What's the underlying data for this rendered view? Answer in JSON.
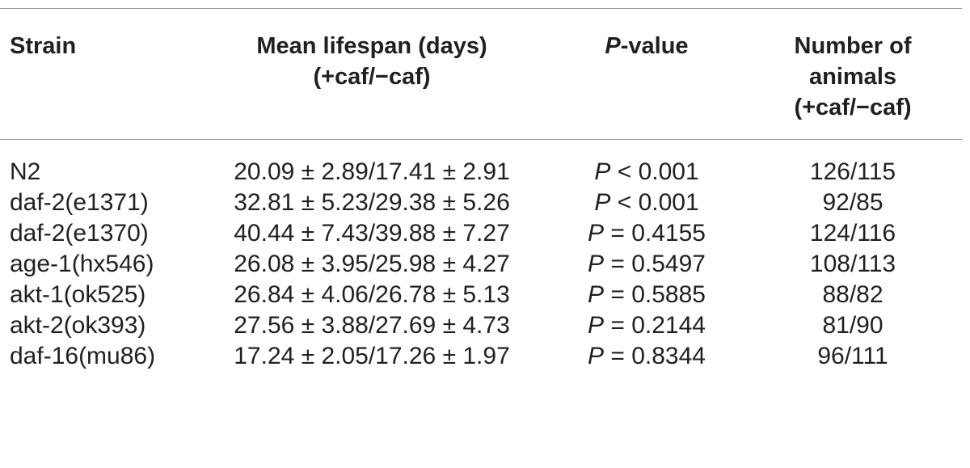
{
  "header": {
    "strain": "Strain",
    "lifespan_line1": "Mean lifespan (days)",
    "lifespan_line2": "(+caf/−caf)",
    "pvalue_italic": "P",
    "pvalue_rest": "-value",
    "animals_line1": "Number of",
    "animals_line2": "animals",
    "animals_line3": "(+caf/−caf)"
  },
  "rows": [
    {
      "strain": "N2",
      "lifespan": "20.09 ± 2.89/17.41 ± 2.91",
      "p_symbol": "P",
      "p_value": " < 0.001",
      "animals": "126/115"
    },
    {
      "strain": "daf-2(e1371)",
      "lifespan": "32.81 ± 5.23/29.38 ± 5.26",
      "p_symbol": "P",
      "p_value": " < 0.001",
      "animals": "92/85"
    },
    {
      "strain": "daf-2(e1370)",
      "lifespan": "40.44 ± 7.43/39.88 ± 7.27",
      "p_symbol": "P",
      "p_value": " = 0.4155",
      "animals": "124/116"
    },
    {
      "strain": "age-1(hx546)",
      "lifespan": "26.08 ± 3.95/25.98 ± 4.27",
      "p_symbol": "P",
      "p_value": " = 0.5497",
      "animals": "108/113"
    },
    {
      "strain": "akt-1(ok525)",
      "lifespan": "26.84 ± 4.06/26.78 ± 5.13",
      "p_symbol": "P",
      "p_value": " = 0.5885",
      "animals": "88/82"
    },
    {
      "strain": "akt-2(ok393)",
      "lifespan": "27.56 ± 3.88/27.69 ± 4.73",
      "p_symbol": "P",
      "p_value": " = 0.2144",
      "animals": "81/90"
    },
    {
      "strain": "daf-16(mu86)",
      "lifespan": "17.24 ± 2.05/17.26 ± 1.97",
      "p_symbol": "P",
      "p_value": " = 0.8344",
      "animals": "96/111"
    }
  ]
}
